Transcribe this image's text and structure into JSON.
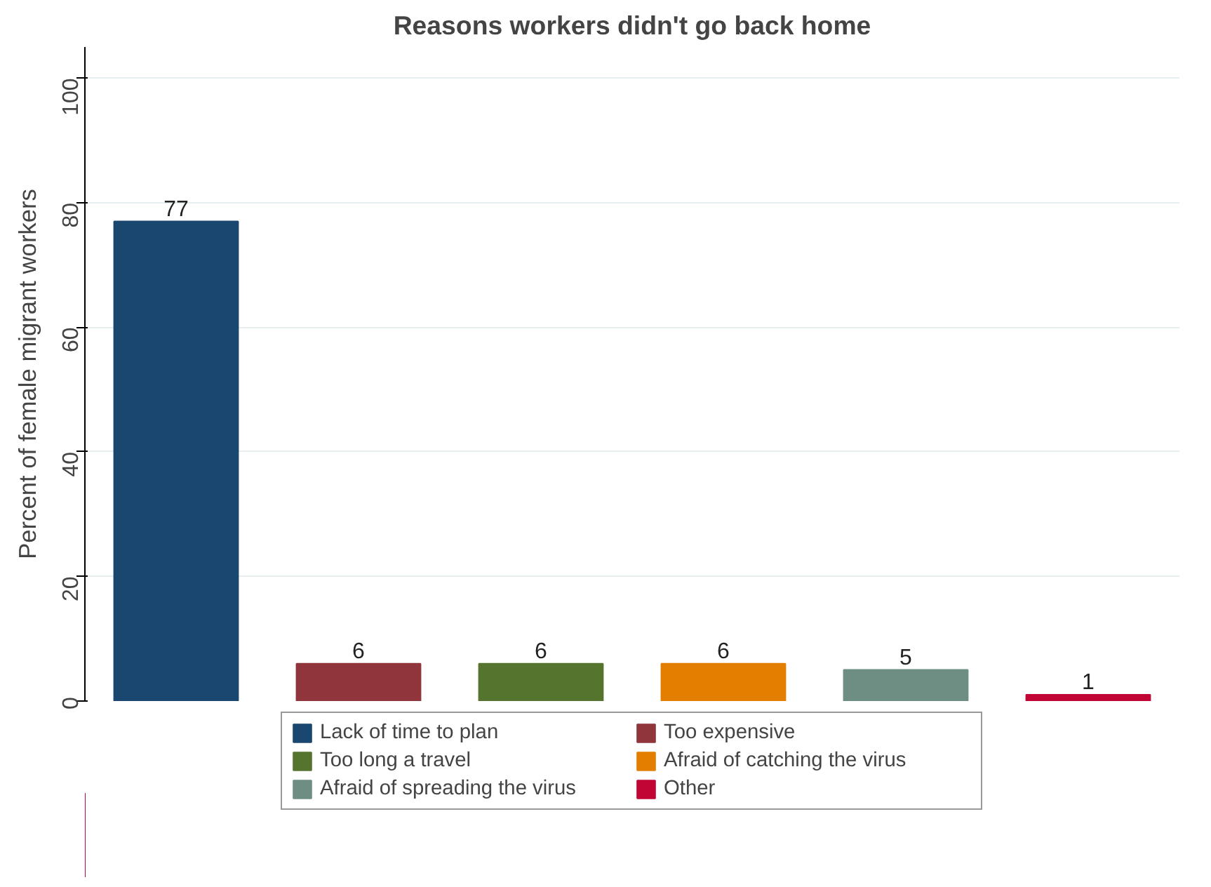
{
  "chart_data": {
    "type": "bar",
    "title": "Reasons workers didn't go back home",
    "ylabel": "Percent of female migrant workers",
    "categories": [
      null,
      null,
      null,
      null,
      null,
      null
    ],
    "series": [
      {
        "name": "Lack of time to plan",
        "color": "#1a476f",
        "values": [
          77,
          null,
          null,
          null,
          null,
          null
        ]
      },
      {
        "name": "Too expensive",
        "color": "#90353b",
        "values": [
          null,
          6,
          null,
          null,
          null,
          null
        ]
      },
      {
        "name": "Too long a travel",
        "color": "#55752f",
        "values": [
          null,
          null,
          6,
          null,
          null,
          null
        ]
      },
      {
        "name": "Afraid of catching the virus",
        "color": "#e37e00",
        "values": [
          null,
          null,
          null,
          6,
          null,
          null
        ]
      },
      {
        "name": "Afraid of spreading the virus",
        "color": "#6e8e84",
        "values": [
          null,
          null,
          null,
          null,
          5,
          null
        ]
      },
      {
        "name": "Other",
        "color": "#c10534",
        "values": [
          null,
          null,
          null,
          null,
          null,
          1
        ]
      }
    ],
    "ylim": [
      0,
      105
    ],
    "yticks": [
      0,
      20,
      40,
      60,
      80,
      100
    ],
    "grid": "y",
    "legend": "bottom",
    "data_labels": true
  }
}
